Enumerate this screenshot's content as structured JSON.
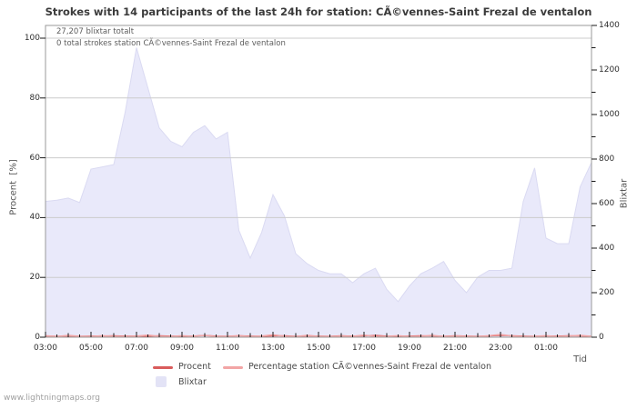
{
  "title": "Strokes with 14 participants of the last 24h for station: CÃ©vennes-Saint Frezal de ventalon",
  "annotations": {
    "line1": "27,207 blixtar totalt",
    "line2": "0 total strokes station CÃ©vennes-Saint Frezal de ventalon"
  },
  "watermark": "www.lightningmaps.org",
  "legend": {
    "procent_label": "Procent",
    "station_label": "Percentage station CÃ©vennes-Saint Frezal de ventalon",
    "blixtar_label": "Blixtar"
  },
  "colors": {
    "area_fill": "#e9e9fa",
    "area_stroke": "#dadaf2",
    "legend_area_swatch": "#e3e3f6",
    "procent_line": "#d95c5c",
    "station_line": "#f2a5a5",
    "grid": "#cccccc",
    "border": "#9a9a9a",
    "tick": "#1a1a1a"
  },
  "chart_data": {
    "type": "area",
    "title": "Strokes with 14 participants of the last 24h for station: CÃ©vennes-Saint Frezal de ventalon",
    "grid": "horizontal",
    "legend_position": "bottom",
    "x_axis": {
      "label": "Tid",
      "min": 3,
      "max": 27,
      "tick_hours": [
        3,
        5,
        7,
        9,
        11,
        13,
        15,
        17,
        19,
        21,
        23,
        25
      ],
      "tick_labels": [
        "03:00",
        "05:00",
        "07:00",
        "09:00",
        "11:00",
        "13:00",
        "15:00",
        "17:00",
        "19:00",
        "21:00",
        "23:00",
        "01:00"
      ]
    },
    "left_axis": {
      "label": "Procent  [%]",
      "min": 0,
      "max": 100,
      "ticks": [
        0,
        20,
        40,
        60,
        80,
        100
      ]
    },
    "right_axis": {
      "label": "Blixtar",
      "min": 0,
      "max": 1400,
      "ticks": [
        0,
        200,
        400,
        600,
        800,
        1000,
        1200,
        1400
      ],
      "minor_step": 100
    },
    "x_hours": [
      3,
      3.5,
      4,
      4.5,
      5,
      5.5,
      6,
      6.5,
      7,
      7.5,
      8,
      8.5,
      9,
      9.5,
      10,
      10.5,
      11,
      11.5,
      12,
      12.5,
      13,
      13.5,
      14,
      14.5,
      15,
      15.5,
      16,
      16.5,
      17,
      17.5,
      18,
      18.5,
      19,
      19.5,
      20,
      20.5,
      21,
      21.5,
      22,
      22.5,
      23,
      23.5,
      24,
      24.5,
      25,
      25.5,
      26,
      26.5,
      27
    ],
    "series": [
      {
        "name": "Blixtar",
        "render": "area",
        "axis": "right",
        "values": [
          610,
          615,
          625,
          605,
          755,
          765,
          775,
          1010,
          1300,
          1120,
          940,
          880,
          855,
          920,
          950,
          890,
          920,
          480,
          355,
          470,
          640,
          545,
          375,
          330,
          300,
          285,
          285,
          245,
          285,
          310,
          215,
          160,
          230,
          285,
          310,
          340,
          255,
          200,
          270,
          300,
          300,
          310,
          610,
          760,
          445,
          420,
          420,
          675,
          785
        ]
      },
      {
        "name": "Procent",
        "render": "line",
        "axis": "left",
        "values": [
          0.4,
          0.3,
          0.4,
          0.3,
          0.4,
          0.4,
          0.5,
          0.4,
          0.4,
          0.3,
          0.5,
          0.4,
          0.3,
          0.4,
          0.6,
          0.4,
          0.3,
          0.5,
          0.4,
          0.3,
          0.4,
          0.5,
          0.3,
          0.4,
          0.4,
          0.3,
          0.5,
          0.4,
          0.4,
          0.6,
          0.4,
          0.3,
          0.4,
          0.5,
          0.4,
          0.3,
          0.5,
          0.4,
          0.3,
          0.4,
          0.6,
          0.5,
          0.4,
          0.3,
          0.4,
          0.4,
          0.5,
          0.4,
          0.3
        ]
      },
      {
        "name": "Percentage station CÃ©vennes-Saint Frezal de ventalon",
        "render": "line",
        "axis": "left",
        "values": [
          0.5,
          0.2,
          0.6,
          0.3,
          0.2,
          0.5,
          0.3,
          0.2,
          0.4,
          0.7,
          0.3,
          0.2,
          0.5,
          0.3,
          0.6,
          0.2,
          0.3,
          0.5,
          0.2,
          0.4,
          0.8,
          0.3,
          0.2,
          0.6,
          0.3,
          0.2,
          0.4,
          0.3,
          0.7,
          0.2,
          0.3,
          0.5,
          0.2,
          0.3,
          0.6,
          0.2,
          0.4,
          0.3,
          0.2,
          0.5,
          0.9,
          0.4,
          0.2,
          0.3,
          0.5,
          0.2,
          0.4,
          0.6,
          0.3
        ]
      }
    ],
    "annotation_total": "27,207 blixtar totalt",
    "annotation_station": "0 total strokes station CÃ©vennes-Saint Frezal de ventalon"
  }
}
